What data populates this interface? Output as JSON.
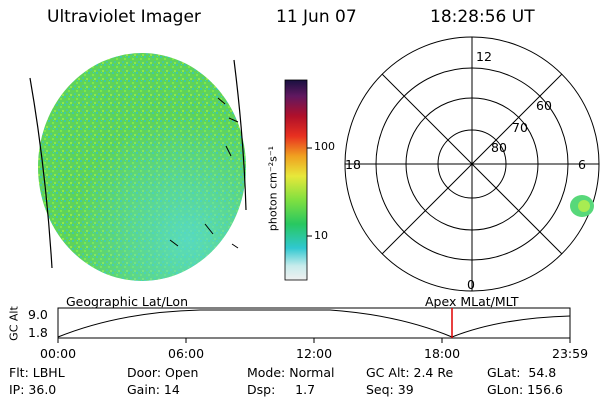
{
  "header": {
    "title": "Ultraviolet Imager",
    "date": "11 Jun 07",
    "time": "18:28:56 UT"
  },
  "colorbar": {
    "unit_label": "photon cm⁻²s⁻¹",
    "ticks": [
      "100",
      "10"
    ]
  },
  "polar_plot": {
    "mlt_labels": [
      "12",
      "18",
      "6",
      "0"
    ],
    "mlat_labels": [
      "60",
      "70",
      "80"
    ]
  },
  "orbit": {
    "left_caption": "Geographic Lat/Lon",
    "right_caption": "Apex MLat/MLT",
    "yaxis_label": "GC Alt",
    "y_ticks": [
      "9.0",
      "1.8"
    ],
    "x_ticks": [
      "00:00",
      "06:00",
      "12:00",
      "18:00",
      "23:59"
    ],
    "marker_color": "#e00000"
  },
  "status": {
    "flt": "Flt: LBHL",
    "ip": "IP: 36.0",
    "door": "Door: Open",
    "gain": "Gain: 14",
    "mode": "Mode: Normal",
    "dsp": "Dsp:     1.7",
    "gc_alt": "GC Alt: 2.4 Re",
    "seq": "Seq: 39",
    "glat": "GLat:  54.8",
    "glon": "GLon: 156.6"
  }
}
